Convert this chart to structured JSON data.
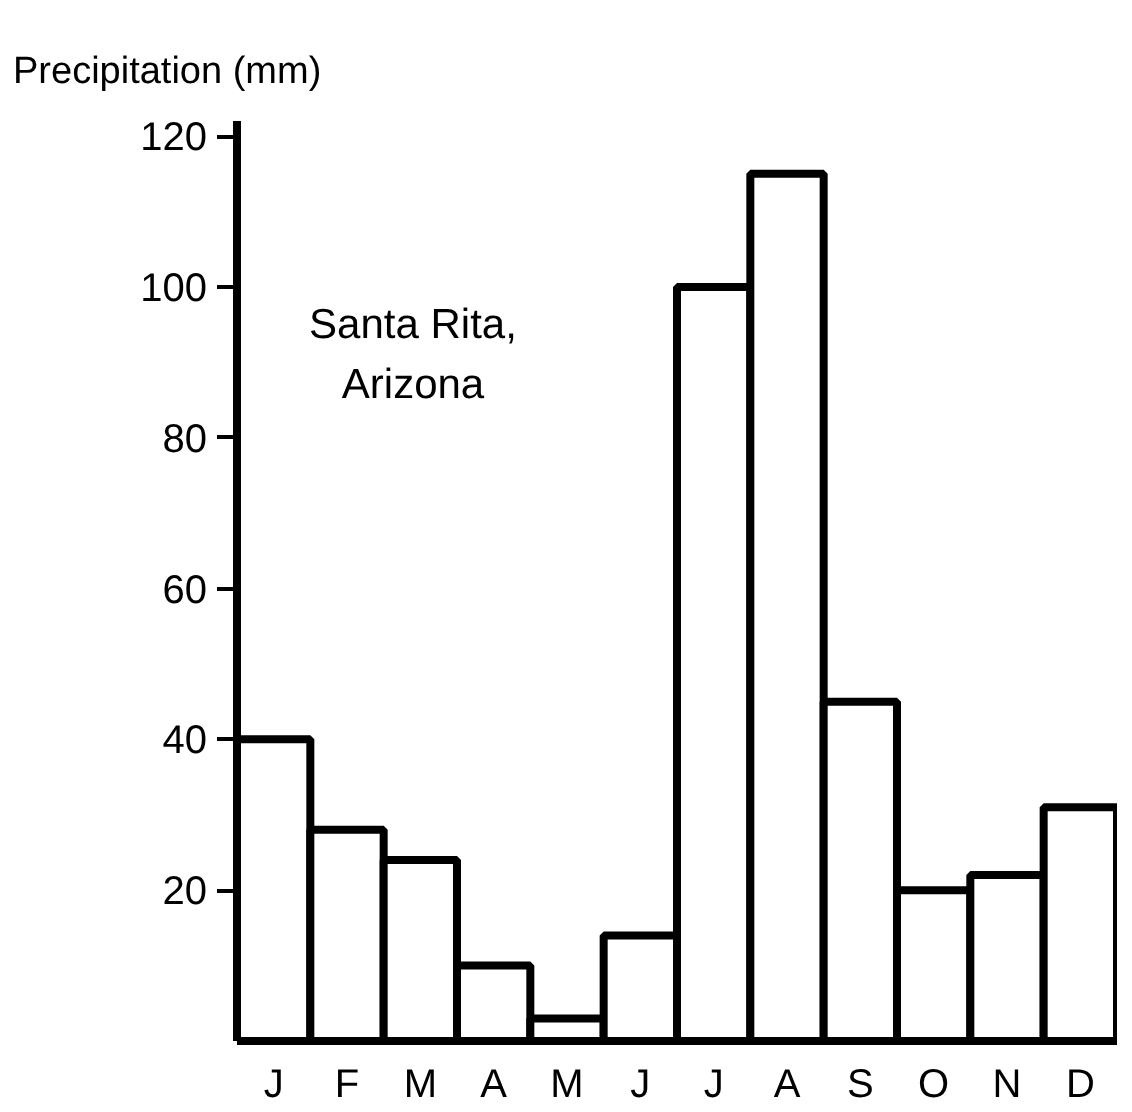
{
  "chart_data": {
    "type": "bar",
    "ylabel": "Precipitation (mm)",
    "categories": [
      "J",
      "F",
      "M",
      "A",
      "M",
      "J",
      "J",
      "A",
      "S",
      "O",
      "N",
      "D"
    ],
    "values": [
      40,
      28,
      24,
      10,
      3,
      14,
      100,
      115,
      45,
      20,
      22,
      31
    ],
    "color": "#ffffff",
    "ylim": [
      0,
      122
    ],
    "yticks": [
      20,
      40,
      60,
      80,
      100,
      120
    ],
    "grid": false,
    "annotations": [
      "Santa Rita,\nArizona"
    ]
  }
}
